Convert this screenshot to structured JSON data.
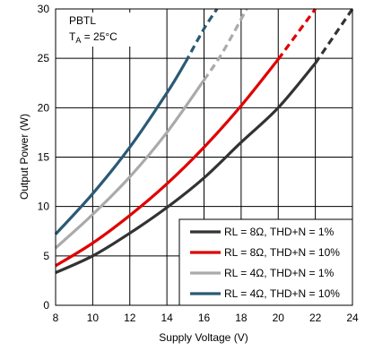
{
  "chart_data": {
    "type": "line",
    "xlabel": "Supply Voltage (V)",
    "ylabel": "Output Power (W)",
    "xlim": [
      8,
      24
    ],
    "ylim": [
      0,
      30
    ],
    "x_ticks": [
      8,
      10,
      12,
      14,
      16,
      18,
      20,
      22,
      24
    ],
    "y_ticks": [
      0,
      5,
      10,
      15,
      20,
      25,
      30
    ],
    "grid": true,
    "legend_position": "bottom-right",
    "annotation": {
      "line1": "PBTL",
      "line2_main": "T",
      "line2_sub": "A",
      "line2_rest": " = 25°C"
    },
    "series": [
      {
        "name": "RL = 8Ω, THD+N = 1%",
        "color": "#333333",
        "x": [
          8,
          10,
          12,
          14,
          16,
          18,
          20,
          22,
          24
        ],
        "y": [
          3.3,
          5.0,
          7.3,
          9.9,
          12.9,
          16.5,
          20.0,
          24.5,
          30.0
        ],
        "dashed_from_x": 22
      },
      {
        "name": "RL = 8Ω, THD+N = 10%",
        "color": "#e00000",
        "x": [
          8,
          10,
          12,
          14,
          16,
          18,
          20,
          22
        ],
        "y": [
          4.0,
          6.3,
          9.1,
          12.3,
          16.0,
          20.2,
          24.9,
          30.0
        ],
        "dashed_from_x": 20
      },
      {
        "name": "RL = 4Ω, THD+N = 1%",
        "color": "#aaaaaa",
        "x": [
          8,
          10,
          12,
          14,
          16,
          17,
          18.3
        ],
        "y": [
          5.8,
          9.2,
          13.0,
          17.5,
          22.8,
          25.6,
          30.0
        ],
        "dashed_from_x": 16
      },
      {
        "name": "RL = 4Ω, THD+N = 10%",
        "color": "#2a5a75",
        "x": [
          8,
          10,
          12,
          14,
          15,
          16,
          16.7
        ],
        "y": [
          7.2,
          11.3,
          16.0,
          21.5,
          24.6,
          28.0,
          30.0
        ],
        "dashed_from_x": 15
      }
    ]
  }
}
